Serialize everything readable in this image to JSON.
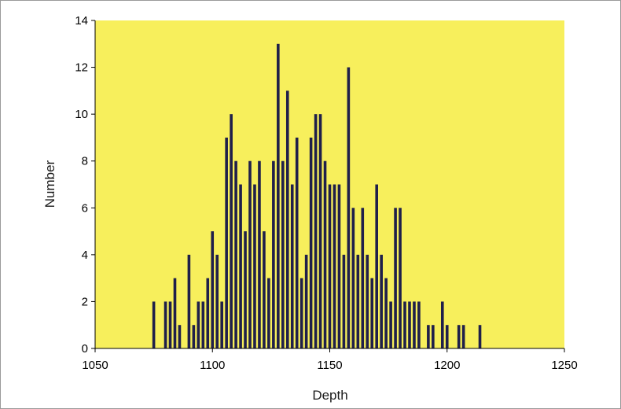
{
  "chart_data": {
    "type": "bar",
    "title": "",
    "xlabel": "Depth",
    "ylabel": "Number",
    "xlim": [
      1050,
      1250
    ],
    "ylim": [
      0,
      14
    ],
    "xticks": [
      1050,
      1100,
      1150,
      1200,
      1250
    ],
    "yticks": [
      0,
      2,
      4,
      6,
      8,
      10,
      12,
      14
    ],
    "grid": false,
    "legend": "none",
    "colors": {
      "plot_background": "#f7ef5c",
      "bar": "#1f1f4a",
      "frame": "#9a9a9a"
    },
    "series": [
      {
        "x": [
          1075,
          1080,
          1082,
          1084,
          1086,
          1090,
          1092,
          1094,
          1096,
          1098,
          1100,
          1102,
          1104,
          1106,
          1108,
          1110,
          1112,
          1114,
          1116,
          1118,
          1120,
          1122,
          1124,
          1126,
          1128,
          1130,
          1132,
          1134,
          1136,
          1138,
          1140,
          1142,
          1144,
          1146,
          1148,
          1150,
          1152,
          1154,
          1156,
          1158,
          1160,
          1162,
          1164,
          1166,
          1168,
          1170,
          1172,
          1174,
          1176,
          1178,
          1180,
          1182,
          1184,
          1186,
          1188,
          1192,
          1194,
          1198,
          1200,
          1205,
          1207,
          1214
        ],
        "values": [
          2,
          2,
          2,
          3,
          1,
          4,
          1,
          2,
          2,
          3,
          5,
          4,
          2,
          9,
          10,
          8,
          7,
          5,
          8,
          7,
          8,
          5,
          3,
          8,
          13,
          8,
          11,
          7,
          9,
          3,
          4,
          9,
          10,
          10,
          8,
          7,
          7,
          7,
          4,
          12,
          6,
          4,
          6,
          4,
          3,
          7,
          4,
          3,
          2,
          6,
          6,
          2,
          2,
          2,
          2,
          1,
          1,
          2,
          1,
          1,
          1,
          1
        ]
      }
    ]
  }
}
